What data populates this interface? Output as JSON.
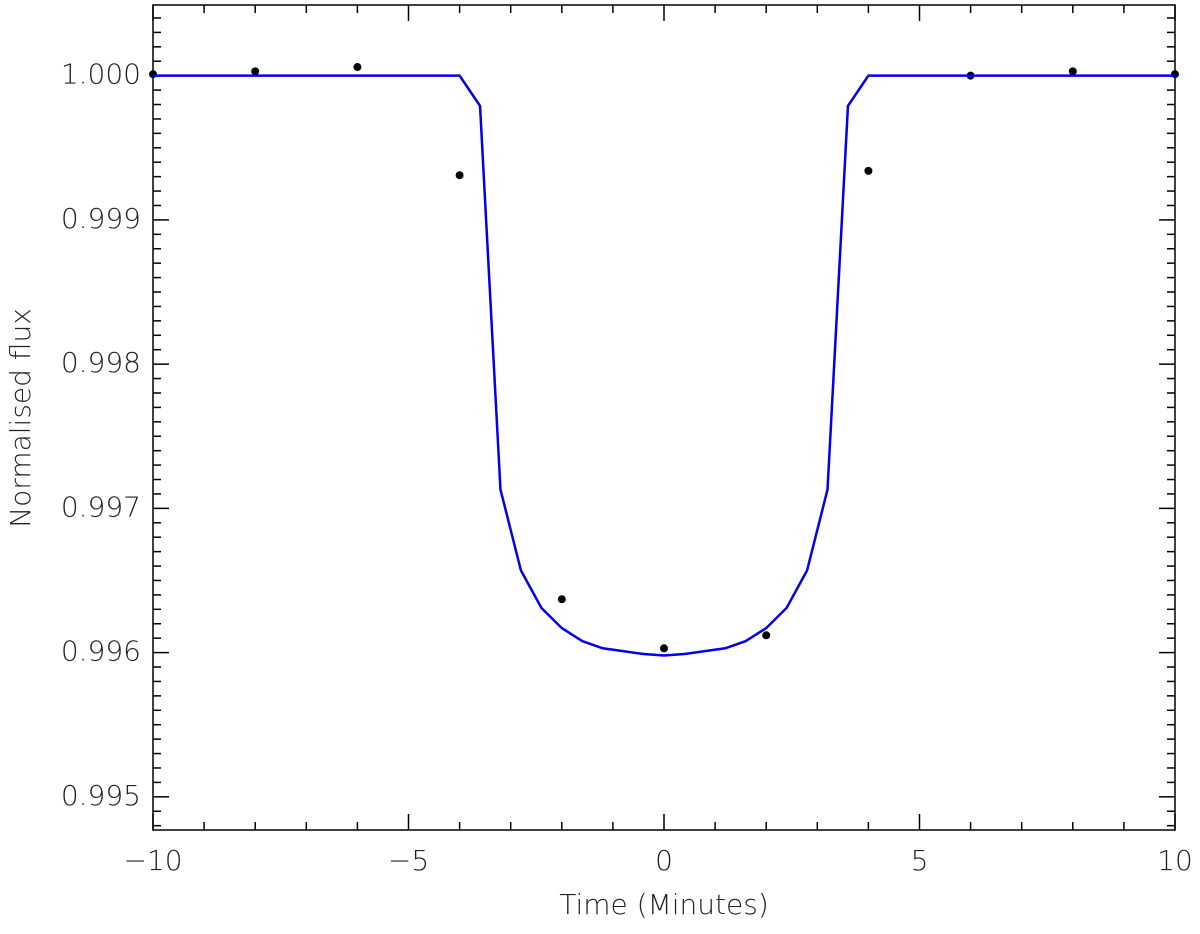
{
  "chart_data": {
    "type": "scatter",
    "xlabel": "Time (Minutes)",
    "ylabel": "Normalised flux",
    "xlim": [
      -10,
      10
    ],
    "ylim": [
      0.99477,
      1.00049
    ],
    "xticks": [
      {
        "value": -10,
        "label": "−10"
      },
      {
        "value": -5,
        "label": "−5"
      },
      0,
      5,
      10
    ],
    "yticks": [
      0.995,
      0.996,
      0.997,
      0.998,
      0.999,
      {
        "value": 1,
        "label": "1.000"
      }
    ],
    "minor_per_major": {
      "x": 5,
      "y": 10
    },
    "series": [
      {
        "type": "scatter",
        "color": "#000000",
        "x": [
          -10,
          -8,
          -6,
          -4,
          -2,
          0,
          2,
          4,
          6,
          8,
          10
        ],
        "values": [
          1.00001,
          1.00003,
          1.00006,
          0.99931,
          0.99637,
          0.99603,
          0.99612,
          0.99934,
          1.0,
          1.00003,
          1.00001
        ]
      },
      {
        "type": "line",
        "color": "#0000ee",
        "x": [
          -10,
          -4,
          -3.6,
          -3.2,
          -2.8,
          -2.4,
          -2.0,
          -1.6,
          -1.2,
          -0.8,
          -0.4,
          0,
          0.4,
          0.8,
          1.2,
          1.6,
          2.0,
          2.4,
          2.8,
          3.2,
          3.6,
          4,
          10
        ],
        "values": [
          1.0,
          1.0,
          0.99979,
          0.99713,
          0.99657,
          0.99631,
          0.99617,
          0.99608,
          0.99603,
          0.99601,
          0.99599,
          0.99598,
          0.99599,
          0.99601,
          0.99603,
          0.99608,
          0.99617,
          0.99631,
          0.99657,
          0.99713,
          0.99979,
          1.0,
          1.0
        ]
      }
    ]
  }
}
